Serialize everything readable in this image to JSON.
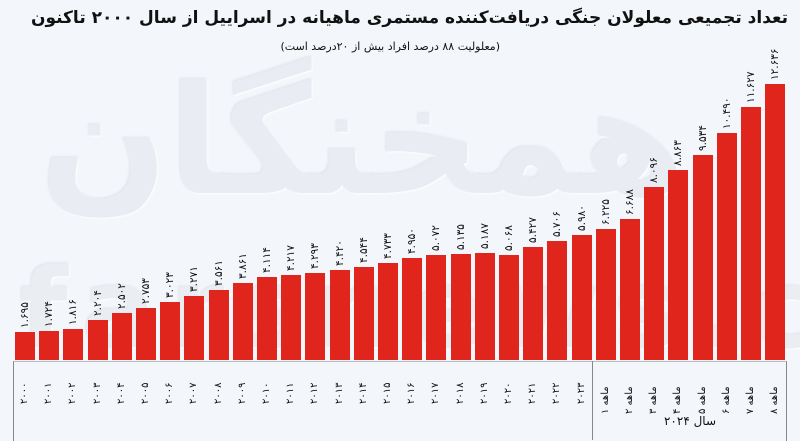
{
  "title": "تعداد تجمیعی معلولان جنگی دریافت‌کننده مستمری ماهیانه در اسراییل از سال ۲۰۰۰ تاکنون",
  "subtitle": "(معلولیت ۸۸ درصد افراد بیش از ۲۰درصد است)",
  "watermark": {
    "main": "همخنگان",
    "url": "farsnews.com"
  },
  "colors": {
    "bar": "#e0261c",
    "background": "#f3f6fa",
    "text": "#111111"
  },
  "x_group_label": "سال ۲۰۲۴",
  "chart_data": {
    "type": "bar",
    "title": "تعداد تجمیعی معلولان جنگی دریافت‌کننده مستمری ماهیانه در اسراییل از سال ۲۰۰۰ تاکنون",
    "subtitle": "(معلولیت ۸۸ درصد افراد بیش از ۲۰درصد است)",
    "xlabel": "",
    "ylabel": "",
    "grid": false,
    "legend": null,
    "categories": [
      "۲۰۰۰",
      "۲۰۰۱",
      "۲۰۰۲",
      "۲۰۰۳",
      "۲۰۰۴",
      "۲۰۰۵",
      "۲۰۰۶",
      "۲۰۰۷",
      "۲۰۰۸",
      "۲۰۰۹",
      "۲۰۱۰",
      "۲۰۱۱",
      "۲۰۱۲",
      "۲۰۱۳",
      "۲۰۱۴",
      "۲۰۱۵",
      "۲۰۱۶",
      "۲۰۱۷",
      "۲۰۱۸",
      "۲۰۱۹",
      "۲۰۲۰",
      "۲۰۲۱",
      "۲۰۲۲",
      "۲۰۲۳",
      "۱ ماهه",
      "۲ ماهه",
      "۳ ماهه",
      "۴ ماهه",
      "۵ ماهه",
      "۶ ماهه",
      "۷ ماهه",
      "۸ ماهه"
    ],
    "values": [
      1695,
      1724,
      1816,
      2204,
      2502,
      2753,
      3023,
      3271,
      3561,
      3861,
      4114,
      4217,
      4293,
      4420,
      4544,
      4733,
      4950,
      5072,
      5135,
      5187,
      5068,
      5427,
      5706,
      5980,
      6225,
      6688,
      8096,
      8863,
      9534,
      10490,
      11627,
      12636
    ],
    "value_labels": [
      "۱.۶۹۵",
      "۱.۷۲۴",
      "۱.۸۱۶",
      "۲.۲۰۴",
      "۲.۵۰۲",
      "۲.۷۵۳",
      "۳.۰۲۳",
      "۳.۲۷۱",
      "۳.۵۶۱",
      "۳.۸۶۱",
      "۴.۱۱۴",
      "۴.۲۱۷",
      "۴.۲۹۳",
      "۴.۴۲۰",
      "۴.۵۴۴",
      "۴.۷۳۳",
      "۴.۹۵۰",
      "۵.۰۷۲",
      "۵.۱۳۵",
      "۵.۱۸۷",
      "۵.۰۶۸",
      "۵.۴۲۷",
      "۵.۷۰۶",
      "۵.۹۸۰",
      "۶.۲۲۵",
      "۶.۶۸۸",
      "۸.۰۹۶",
      "۸.۸۶۳",
      "۹.۵۳۴",
      "۱۰.۴۹۰",
      "۱۱.۶۲۷",
      "۱۲.۶۳۶"
    ],
    "group_annotations": [
      {
        "label": "سال ۲۰۲۴",
        "from": "۱ ماهه",
        "to": "۸ ماهه"
      }
    ]
  }
}
